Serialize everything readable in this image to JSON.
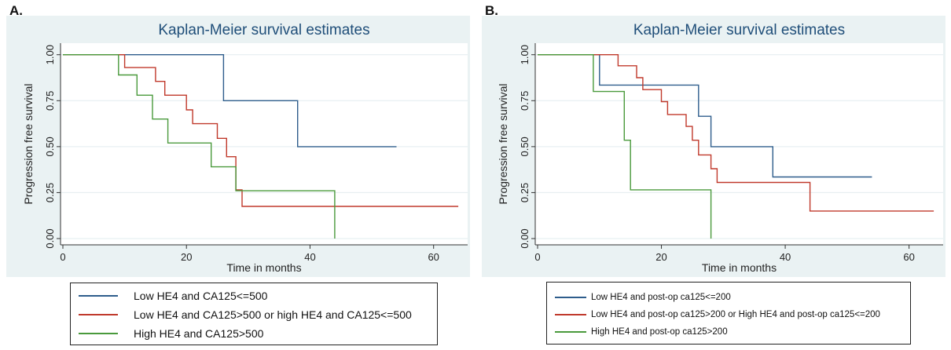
{
  "chart_data": [
    {
      "panel_label": "A.",
      "type": "line",
      "subtype": "step",
      "title": "Kaplan-Meier survival estimates",
      "xlabel": "Time in months",
      "ylabel": "Progression free survival",
      "xlim": [
        0,
        65
      ],
      "ylim": [
        0,
        1.05
      ],
      "xticks": [
        0,
        20,
        40,
        60
      ],
      "yticks": [
        0.0,
        0.25,
        0.5,
        0.75,
        1.0
      ],
      "xtick_labels": [
        "0",
        "20",
        "40",
        "60"
      ],
      "ytick_labels": [
        "0.00",
        "0.25",
        "0.50",
        "0.75",
        "1.00"
      ],
      "grid": true,
      "legend_position": "bottom",
      "series": [
        {
          "name": "Low HE4 and CA125<=500",
          "color": "#2e5d8c",
          "points": [
            [
              0,
              1.0
            ],
            [
              26,
              1.0
            ],
            [
              26,
              0.75
            ],
            [
              38,
              0.75
            ],
            [
              38,
              0.5
            ],
            [
              54,
              0.5
            ]
          ]
        },
        {
          "name": "Low HE4 and CA125>500 or high HE4 and CA125<=500",
          "color": "#c0392b",
          "points": [
            [
              0,
              1.0
            ],
            [
              10,
              1.0
            ],
            [
              10,
              0.93
            ],
            [
              15,
              0.93
            ],
            [
              15,
              0.855
            ],
            [
              16.5,
              0.855
            ],
            [
              16.5,
              0.78
            ],
            [
              20,
              0.78
            ],
            [
              20,
              0.7
            ],
            [
              21,
              0.7
            ],
            [
              21,
              0.625
            ],
            [
              25,
              0.625
            ],
            [
              25,
              0.545
            ],
            [
              26.5,
              0.545
            ],
            [
              26.5,
              0.445
            ],
            [
              28,
              0.445
            ],
            [
              28,
              0.265
            ],
            [
              29,
              0.265
            ],
            [
              29,
              0.175
            ],
            [
              64,
              0.175
            ]
          ]
        },
        {
          "name": "High HE4 and CA125>500",
          "color": "#4a9a3c",
          "points": [
            [
              0,
              1.0
            ],
            [
              9,
              1.0
            ],
            [
              9,
              0.89
            ],
            [
              12,
              0.89
            ],
            [
              12,
              0.78
            ],
            [
              14.5,
              0.78
            ],
            [
              14.5,
              0.65
            ],
            [
              17,
              0.65
            ],
            [
              17,
              0.52
            ],
            [
              24,
              0.52
            ],
            [
              24,
              0.39
            ],
            [
              28,
              0.39
            ],
            [
              28,
              0.26
            ],
            [
              44,
              0.26
            ],
            [
              44,
              0.0
            ]
          ]
        }
      ]
    },
    {
      "panel_label": "B.",
      "type": "line",
      "subtype": "step",
      "title": "Kaplan-Meier survival estimates",
      "xlabel": "Time in months",
      "ylabel": "Progression free survival",
      "xlim": [
        0,
        65
      ],
      "ylim": [
        0,
        1.05
      ],
      "xticks": [
        0,
        20,
        40,
        60
      ],
      "yticks": [
        0.0,
        0.25,
        0.5,
        0.75,
        1.0
      ],
      "xtick_labels": [
        "0",
        "20",
        "40",
        "60"
      ],
      "ytick_labels": [
        "0.00",
        "0.25",
        "0.50",
        "0.75",
        "1.00"
      ],
      "grid": true,
      "legend_position": "bottom",
      "series": [
        {
          "name": "Low HE4 and post-op ca125<=200",
          "color": "#2e5d8c",
          "points": [
            [
              0,
              1.0
            ],
            [
              10,
              1.0
            ],
            [
              10,
              0.835
            ],
            [
              26,
              0.835
            ],
            [
              26,
              0.665
            ],
            [
              28,
              0.665
            ],
            [
              28,
              0.5
            ],
            [
              38,
              0.5
            ],
            [
              38,
              0.335
            ],
            [
              54,
              0.335
            ]
          ]
        },
        {
          "name": "Low HE4 and post-op ca125>200 or High HE4 and post-op ca125<=200",
          "color": "#c0392b",
          "points": [
            [
              0,
              1.0
            ],
            [
              13,
              1.0
            ],
            [
              13,
              0.94
            ],
            [
              16,
              0.94
            ],
            [
              16,
              0.875
            ],
            [
              17,
              0.875
            ],
            [
              17,
              0.81
            ],
            [
              20,
              0.81
            ],
            [
              20,
              0.745
            ],
            [
              21,
              0.745
            ],
            [
              21,
              0.675
            ],
            [
              24,
              0.675
            ],
            [
              24,
              0.61
            ],
            [
              25,
              0.61
            ],
            [
              25,
              0.535
            ],
            [
              26,
              0.535
            ],
            [
              26,
              0.455
            ],
            [
              28,
              0.455
            ],
            [
              28,
              0.38
            ],
            [
              29,
              0.38
            ],
            [
              29,
              0.305
            ],
            [
              44,
              0.305
            ],
            [
              44,
              0.15
            ],
            [
              64,
              0.15
            ]
          ]
        },
        {
          "name": "High HE4 and post-op ca125>200",
          "color": "#4a9a3c",
          "points": [
            [
              0,
              1.0
            ],
            [
              9,
              1.0
            ],
            [
              9,
              0.8
            ],
            [
              14,
              0.8
            ],
            [
              14,
              0.535
            ],
            [
              15,
              0.535
            ],
            [
              15,
              0.265
            ],
            [
              28,
              0.265
            ],
            [
              28,
              0.0
            ]
          ]
        }
      ]
    }
  ]
}
